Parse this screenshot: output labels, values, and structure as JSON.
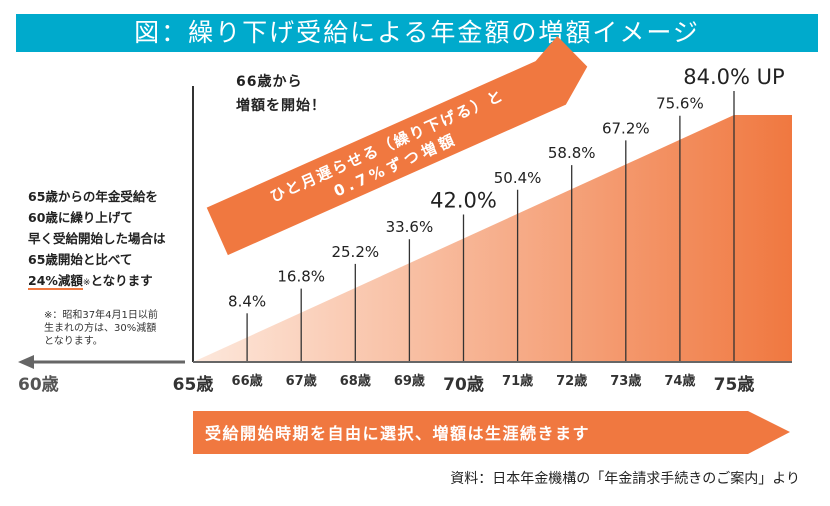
{
  "title": "図：繰り下げ受給による年金額の増額イメージ",
  "colors": {
    "banner": "#00aacc",
    "accent": "#f07840",
    "axis": "#333333"
  },
  "left_note": {
    "lines": [
      "65歳からの年金受給を",
      "60歳に繰り上げて",
      "早く受給開始した場合は",
      "65歳開始と比べて"
    ],
    "emph": "24%減額",
    "mark": "※",
    "tail": "となります",
    "footnote": "※：昭和37年4月1日以前生まれの方は、30%減額となります。"
  },
  "start_note": {
    "line1": "66歳から",
    "line2": "増額を開始！"
  },
  "diag_arrow": {
    "line1": "ひと月遅らせる（繰り下げる）と",
    "line2": "0.7%ずつ増額"
  },
  "bottom_arrow": "受給開始時期を自由に選択、増額は生涯続きます",
  "source": "資料：日本年金機構の「年金請求手続きのご案内」より",
  "left_age": "60歳",
  "chart_data": {
    "type": "area",
    "categories": [
      "65歳",
      "66歳",
      "67歳",
      "68歳",
      "69歳",
      "70歳",
      "71歳",
      "72歳",
      "73歳",
      "74歳",
      "75歳"
    ],
    "values": [
      0,
      8.4,
      16.8,
      25.2,
      33.6,
      42.0,
      50.4,
      58.8,
      67.2,
      75.6,
      84.0
    ],
    "labels": [
      "",
      "8.4%",
      "16.8%",
      "25.2%",
      "33.6%",
      "42.0%",
      "50.4%",
      "58.8%",
      "67.2%",
      "75.6%",
      "84.0% UP"
    ],
    "ylim": [
      0,
      84
    ],
    "emphasized": [
      "65歳",
      "70歳",
      "75歳"
    ]
  }
}
